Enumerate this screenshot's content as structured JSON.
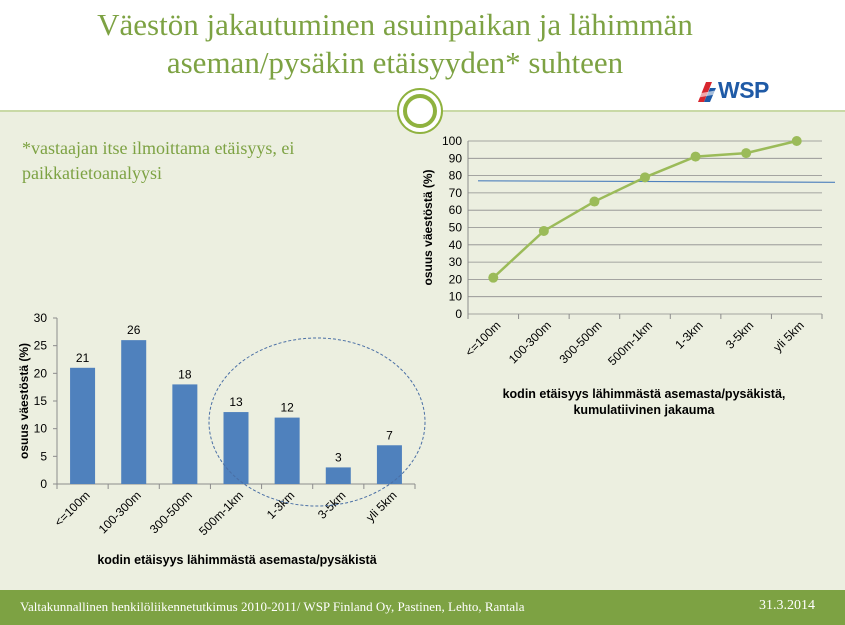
{
  "slide": {
    "title_line1": "Väestön jakautuminen asuinpaikan ja lähimmän",
    "title_line2": "aseman/pysäkin etäisyyden* suhteen",
    "logo_text": "WSP",
    "note_line1": "*vastaajan itse ilmoittama etäisyys, ei",
    "note_line2": "paikkatietoanalyysi",
    "footer_text": "Valtakunnallinen henkilöliikennetutkimus  2010-2011/ WSP Finland Oy, Pastinen,  Lehto,  Rantala",
    "footer_date": "31.3.2014"
  },
  "colors": {
    "title_green": "#7da243",
    "bar_blue": "#4f81bd",
    "line_green": "#9bbb59",
    "reference_line_blue": "#4f81bd",
    "footer_green": "#7da243",
    "body_background": "#ecefe0"
  },
  "chart_data": [
    {
      "type": "line",
      "categories": [
        "<=100m",
        "100-300m",
        "300-500m",
        "500m-1km",
        "1-3km",
        "3-5km",
        "yli 5km"
      ],
      "series": [
        {
          "values": [
            21,
            48,
            65,
            79,
            91,
            93,
            100
          ]
        }
      ],
      "reference_line": 77,
      "xlabel": "kodin etäisyys lähimmästä asemasta/pysäkistä, kumulatiivinen jakauma",
      "xlabel_lines": [
        "kodin etäisyys lähimmästä asemasta/pysäkistä,",
        "kumulatiivinen jakauma"
      ],
      "ylabel": "osuus väestöstä (%)",
      "ylim": [
        0,
        100
      ],
      "yticks": [
        0,
        10,
        20,
        30,
        40,
        50,
        60,
        70,
        80,
        90,
        100
      ],
      "grid": true
    },
    {
      "type": "bar",
      "categories": [
        "<=100m",
        "100-300m",
        "300-500m",
        "500m-1km",
        "1-3km",
        "3-5km",
        "yli 5km"
      ],
      "values": [
        21,
        26,
        18,
        13,
        12,
        3,
        7
      ],
      "data_labels": [
        "21",
        "26",
        "18",
        "13",
        "12",
        "3",
        "7"
      ],
      "xlabel": "kodin etäisyys lähimmästä asemasta/pysäkistä",
      "ylabel": "osuus väestöstä  (%)",
      "ylim": [
        0,
        30
      ],
      "yticks": [
        0,
        5,
        10,
        15,
        20,
        25,
        30
      ],
      "grid": false,
      "annotation": "dashed ellipse around 500m-1km to yli 5km"
    }
  ]
}
